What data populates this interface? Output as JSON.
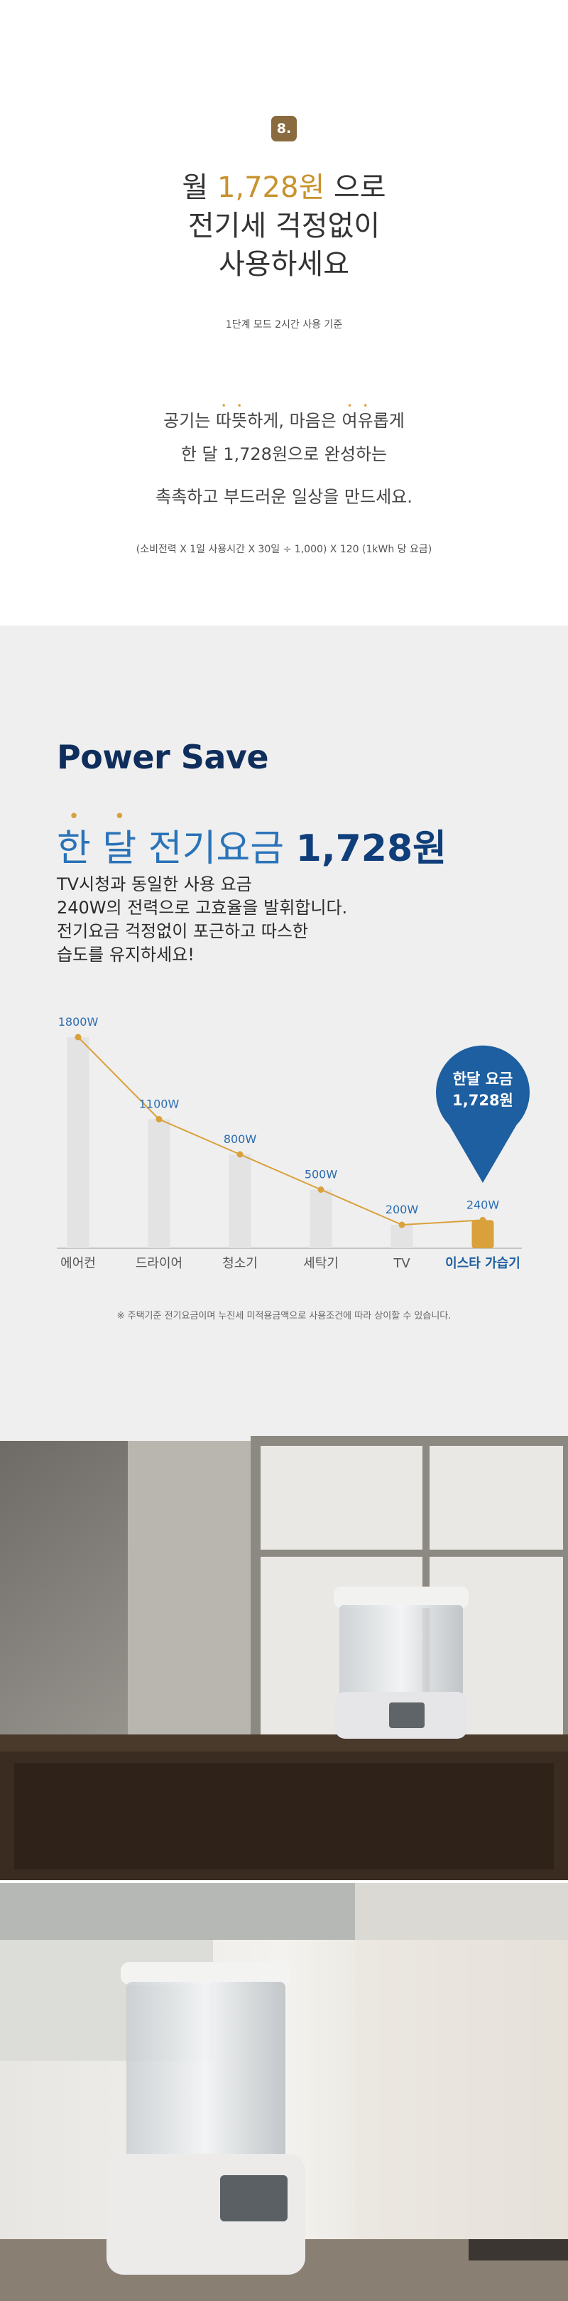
{
  "intro": {
    "badge": "8.",
    "headline": [
      [
        "월 ",
        "1,728원",
        " 으로"
      ],
      [
        "전기세 걱정없이"
      ],
      [
        "사용하세요"
      ]
    ],
    "basis": "1단계 모드 2시간 사용 기준",
    "body": [
      [
        "공기는 ",
        "따뜻",
        "하게, 마음은 ",
        "여유",
        "롭게"
      ],
      [
        "한 달 1,728원으로 완성하는"
      ],
      [
        "촉촉하고 부드러운 일상을 만드세요."
      ]
    ],
    "formula": "(소비전력 X 1일 사용시간 X 30일 ÷ 1,000) X 120 (1kWh 당 요금)"
  },
  "power_save": {
    "title": "Power Save",
    "headline": [
      "한 달",
      " 전기요금 ",
      "1,728원"
    ],
    "description": [
      "TV시청과 동일한 사용 요금",
      "240W의 전력으로 고효율을 발휘합니다.",
      "전기요금 걱정없이 포근하고 따스한",
      "습도를 유지하세요!"
    ],
    "note": "※ 주택기준 전기요금이며 누진세 미적용금액으로 사용조건에 따라 상이할 수 있습니다."
  },
  "chart_data": {
    "type": "bar",
    "categories": [
      "에어컨",
      "드라이어",
      "청소기",
      "세탁기",
      "TV",
      "이스타 가습기"
    ],
    "values": [
      1800,
      1100,
      800,
      500,
      200,
      240
    ],
    "value_labels": [
      "1800W",
      "1100W",
      "800W",
      "500W",
      "200W",
      "240W"
    ],
    "ylim": [
      0,
      1800
    ],
    "color": "#e3e3e3",
    "highlight": 5,
    "highlight_color": "#d9a13b",
    "line_color": "#d9a13b",
    "annotation": [
      "한달 요금",
      "1,728원"
    ]
  }
}
